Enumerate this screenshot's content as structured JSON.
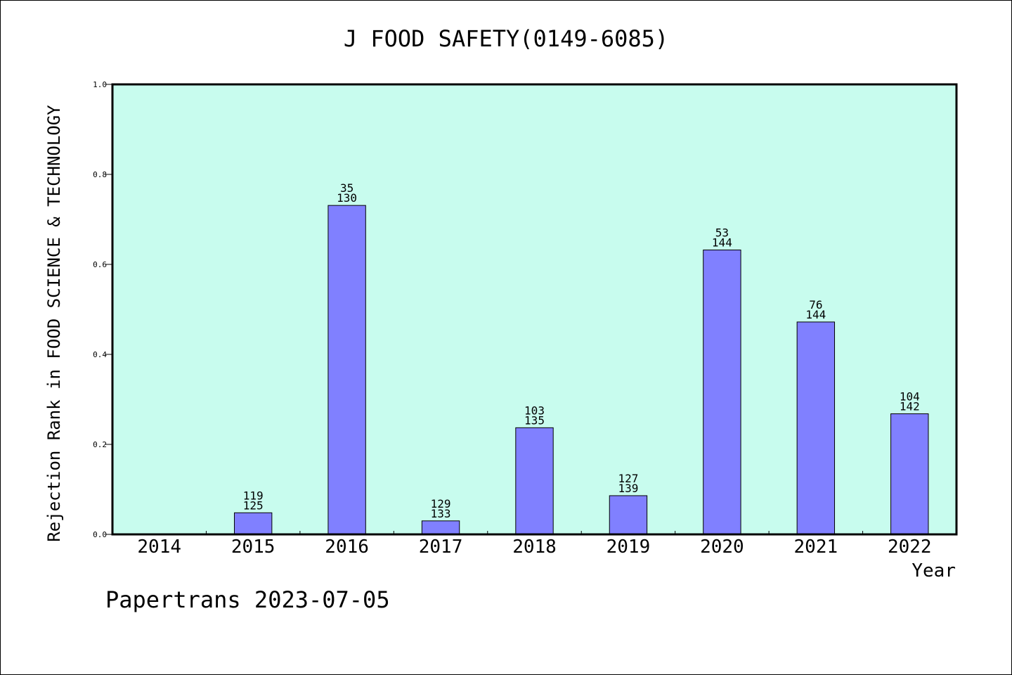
{
  "chart_data": {
    "type": "bar",
    "title": "J FOOD SAFETY(0149-6085)",
    "xlabel": "Year",
    "ylabel": "Rejection Rank in FOOD SCIENCE & TECHNOLOGY",
    "ylim": [
      0,
      1.0
    ],
    "yticks": [
      "0.0",
      "0.2",
      "0.4",
      "0.6",
      "0.8",
      "1.0"
    ],
    "categories": [
      "2014",
      "2015",
      "2016",
      "2017",
      "2018",
      "2019",
      "2020",
      "2021",
      "2022"
    ],
    "values": [
      0,
      0.048,
      0.731,
      0.03,
      0.237,
      0.086,
      0.632,
      0.472,
      0.268
    ],
    "rank": [
      null,
      "119",
      "35",
      "129",
      "103",
      "127",
      "53",
      "76",
      "104"
    ],
    "total": [
      null,
      "125",
      "130",
      "133",
      "135",
      "139",
      "144",
      "144",
      "142"
    ],
    "grid": false,
    "colors": {
      "plot_bg": "#c8fcee",
      "bar": "#8080ff",
      "bar_edge": "#000000"
    }
  },
  "footer": "Papertrans 2023-07-05"
}
